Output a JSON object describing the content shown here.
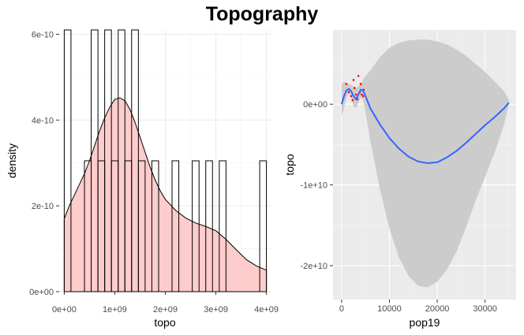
{
  "title": "Topography",
  "chart_data": [
    {
      "type": "histogram+density",
      "xlabel": "topo",
      "ylabel": "density",
      "xlim": [
        -100000000.0,
        4100000000.0
      ],
      "ylim": [
        0,
        6.1e-10
      ],
      "x_ticks": [
        0,
        1000000000.0,
        2000000000.0,
        3000000000.0,
        4000000000.0
      ],
      "x_tick_labels": [
        "0e+00",
        "1e+09",
        "2e+09",
        "3e+09",
        "4e+09"
      ],
      "y_ticks": [
        0,
        2e-10,
        4e-10,
        6e-10
      ],
      "y_tick_labels": [
        "0e+00",
        "2e-10",
        "4e-10",
        "6e-10"
      ],
      "histogram": {
        "bin_edges": [
          0,
          133000000.0,
          267000000.0,
          400000000.0,
          533000000.0,
          667000000.0,
          800000000.0,
          933000000.0,
          1067000000.0,
          1200000000.0,
          1333000000.0,
          1467000000.0,
          1600000000.0,
          1733000000.0,
          1867000000.0,
          2000000000.0,
          2133000000.0,
          2267000000.0,
          2400000000.0,
          2533000000.0,
          2667000000.0,
          2800000000.0,
          2933000000.0,
          3067000000.0,
          3200000000.0,
          3333000000.0,
          3467000000.0,
          3600000000.0,
          3733000000.0,
          3867000000.0,
          4000000000.0
        ],
        "densities": [
          6.1e-10,
          0,
          0,
          3.05e-10,
          6.1e-10,
          3.05e-10,
          6.1e-10,
          3.05e-10,
          6.1e-10,
          3.05e-10,
          6.1e-10,
          3.05e-10,
          0,
          3.05e-10,
          0,
          0,
          3.05e-10,
          0,
          0,
          3.05e-10,
          0,
          3.05e-10,
          0,
          3.05e-10,
          0,
          0,
          0,
          0,
          0,
          3.05e-10
        ],
        "fill": "none",
        "outline": "#000000"
      },
      "density_curve": {
        "x": [
          0,
          100000000.0,
          200000000.0,
          300000000.0,
          400000000.0,
          500000000.0,
          600000000.0,
          700000000.0,
          800000000.0,
          900000000.0,
          1000000000.0,
          1100000000.0,
          1200000000.0,
          1300000000.0,
          1400000000.0,
          1500000000.0,
          1600000000.0,
          1700000000.0,
          1800000000.0,
          1900000000.0,
          2000000000.0,
          2200000000.0,
          2400000000.0,
          2600000000.0,
          2800000000.0,
          3000000000.0,
          3200000000.0,
          3400000000.0,
          3600000000.0,
          3800000000.0,
          4000000000.0
        ],
        "y": [
          1.7e-10,
          2e-10,
          2.25e-10,
          2.5e-10,
          2.75e-10,
          3.05e-10,
          3.4e-10,
          3.75e-10,
          4.05e-10,
          4.3e-10,
          4.48e-10,
          4.52e-10,
          4.45e-10,
          4.25e-10,
          3.95e-10,
          3.6e-10,
          3.25e-10,
          2.9e-10,
          2.6e-10,
          2.35e-10,
          2.15e-10,
          1.9e-10,
          1.72e-10,
          1.6e-10,
          1.52e-10,
          1.42e-10,
          1.22e-10,
          9.8e-11,
          7.5e-11,
          6e-11,
          5e-11
        ],
        "fill": "#ffcccc",
        "line": "#000000"
      }
    },
    {
      "type": "scatter+smooth",
      "xlabel": "pop19",
      "ylabel": "topo",
      "xlim": [
        -1800,
        36500
      ],
      "ylim": [
        -24200000000.0,
        9200000000.0
      ],
      "x_ticks": [
        0,
        10000,
        20000,
        30000
      ],
      "x_tick_labels": [
        "0",
        "10000",
        "20000",
        "30000"
      ],
      "y_ticks": [
        0,
        -10000000000.0,
        -20000000000.0
      ],
      "y_tick_labels": [
        "0e+00",
        "-1e+10",
        "-2e+10"
      ],
      "points": {
        "x": [
          1000,
          1500,
          2000,
          2300,
          2700,
          3000,
          3200,
          3500,
          3800,
          4000,
          4200,
          4500,
          4600,
          2500,
          3300
        ],
        "y": [
          2500000000.0,
          1500000000.0,
          1000000000.0,
          500000000.0,
          2000000000.0,
          1200000000.0,
          800000000.0,
          3500000000.0,
          1500000000.0,
          2500000000.0,
          1200000000.0,
          1000000000.0,
          1800000000.0,
          3000000000.0,
          600000000.0
        ],
        "color": "#ff0000"
      },
      "smooth_line": {
        "x": [
          0,
          500,
          1000,
          1500,
          2000,
          2500,
          3000,
          3500,
          4000,
          4500,
          5000,
          6000,
          8000,
          10000,
          12000,
          14000,
          16000,
          18000,
          20000,
          22000,
          24000,
          26000,
          28000,
          30000,
          32000,
          34000,
          35000
        ],
        "y": [
          0.0,
          1000000000.0,
          1700000000.0,
          1900000000.0,
          1600000000.0,
          1000000000.0,
          600000000.0,
          1200000000.0,
          1800000000.0,
          1700000000.0,
          1000000000.0,
          -500000000.0,
          -2500000000.0,
          -4200000000.0,
          -5500000000.0,
          -6500000000.0,
          -7100000000.0,
          -7300000000.0,
          -7200000000.0,
          -6600000000.0,
          -5800000000.0,
          -4800000000.0,
          -3700000000.0,
          -2600000000.0,
          -1600000000.0,
          -500000000.0,
          200000000.0
        ],
        "color": "#3366ff"
      },
      "confidence_band": {
        "x": [
          0,
          500,
          1000,
          1500,
          2000,
          2500,
          3000,
          3500,
          4000,
          4500,
          5000,
          6000,
          8000,
          10000,
          12000,
          14000,
          16000,
          18000,
          20000,
          22000,
          24000,
          26000,
          28000,
          30000,
          32000,
          34000,
          35000
        ],
        "upper": [
          2500000000.0,
          2800000000.0,
          2600000000.0,
          2500000000.0,
          2400000000.0,
          2200000000.0,
          2000000000.0,
          2200000000.0,
          2600000000.0,
          3000000000.0,
          3500000000.0,
          4200000000.0,
          5800000000.0,
          7000000000.0,
          7600000000.0,
          7900000000.0,
          8000000000.0,
          8000000000.0,
          7800000000.0,
          7400000000.0,
          6800000000.0,
          6000000000.0,
          5000000000.0,
          4000000000.0,
          2800000000.0,
          1600000000.0,
          500000000.0
        ],
        "lower": [
          -1500000000.0,
          -500000000.0,
          800000000.0,
          1300000000.0,
          800000000.0,
          -200000000.0,
          -500000000.0,
          200000000.0,
          800000000.0,
          500000000.0,
          -1000000000.0,
          -4500000000.0,
          -10500000000.0,
          -15400000000.0,
          -19000000000.0,
          -21300000000.0,
          -22500000000.0,
          -22700000000.0,
          -22000000000.0,
          -20500000000.0,
          -18300000000.0,
          -15300000000.0,
          -12000000000.0,
          -9000000000.0,
          -6000000000.0,
          -2500000000.0,
          0.0
        ],
        "color": "#cccccc"
      },
      "panel_background": "#ebebeb"
    }
  ]
}
